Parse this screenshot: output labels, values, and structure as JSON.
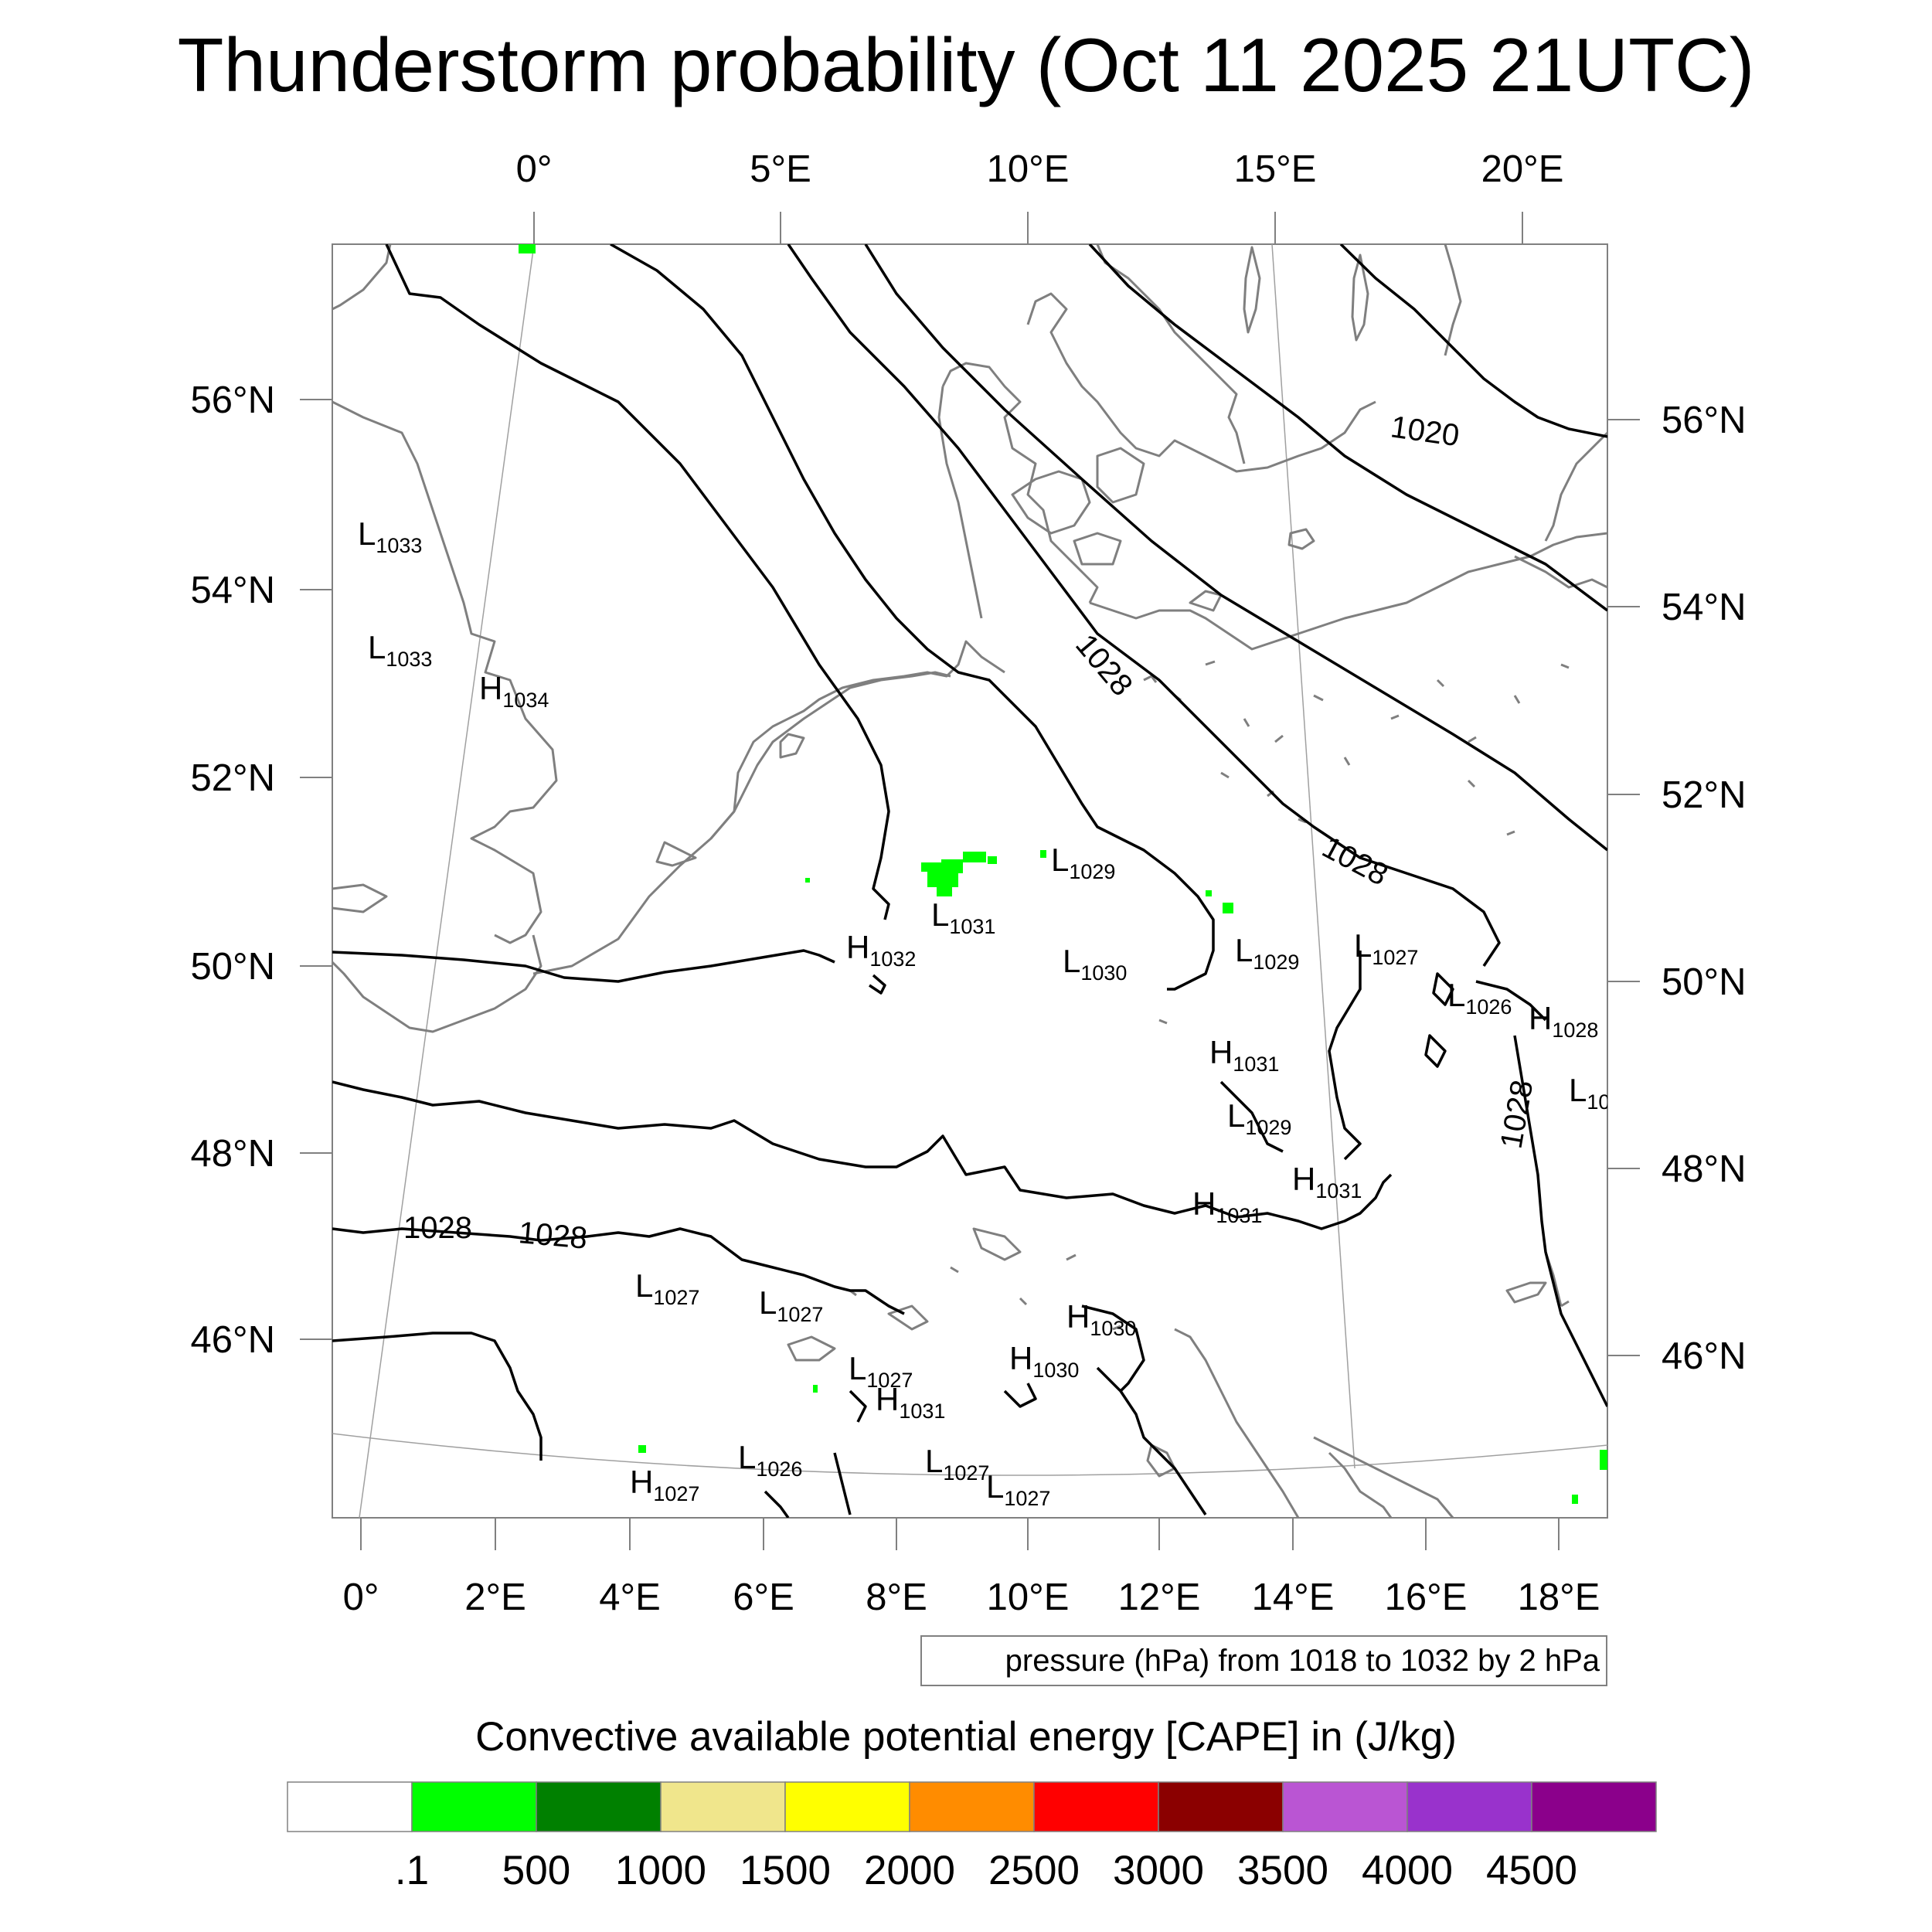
{
  "title": "Thunderstorm probability (Oct 11 2025 21UTC)",
  "top_lon_labels": [
    "0°",
    "5°E",
    "10°E",
    "15°E",
    "20°E"
  ],
  "bottom_lon_labels": [
    "0°",
    "2°E",
    "4°E",
    "6°E",
    "8°E",
    "10°E",
    "12°E",
    "14°E",
    "16°E",
    "18°E"
  ],
  "left_lat_labels": [
    "56°N",
    "54°N",
    "52°N",
    "50°N",
    "48°N",
    "46°N"
  ],
  "right_lat_labels": [
    "56°N",
    "54°N",
    "52°N",
    "50°N",
    "48°N",
    "46°N"
  ],
  "pressure_centers": [
    {
      "type": "L",
      "value": "1033"
    },
    {
      "type": "L",
      "value": "1033"
    },
    {
      "type": "H",
      "value": "1034"
    },
    {
      "type": "L",
      "value": "1029"
    },
    {
      "type": "L",
      "value": "1031"
    },
    {
      "type": "H",
      "value": "1032"
    },
    {
      "type": "L",
      "value": "1030"
    },
    {
      "type": "L",
      "value": "1029"
    },
    {
      "type": "L",
      "value": "1027"
    },
    {
      "type": "L",
      "value": "1026"
    },
    {
      "type": "H",
      "value": "1028"
    },
    {
      "type": "H",
      "value": "1031"
    },
    {
      "type": "L",
      "value": "1029"
    },
    {
      "type": "L",
      "value": "10"
    },
    {
      "type": "H",
      "value": "1031"
    },
    {
      "type": "H",
      "value": "1031"
    },
    {
      "type": "L",
      "value": "1027"
    },
    {
      "type": "L",
      "value": "1027"
    },
    {
      "type": "H",
      "value": "1030"
    },
    {
      "type": "L",
      "value": "1027"
    },
    {
      "type": "H",
      "value": "1031"
    },
    {
      "type": "H",
      "value": "1030"
    },
    {
      "type": "L",
      "value": "1026"
    },
    {
      "type": "L",
      "value": "1027"
    },
    {
      "type": "L",
      "value": "1027"
    },
    {
      "type": "H",
      "value": "1027"
    }
  ],
  "contour_labels": [
    "1020",
    "1028",
    "1028",
    "1028",
    "1028",
    "1028"
  ],
  "pressure_note": "pressure (hPa) from 1018 to 1032 by 2 hPa",
  "colorbar": {
    "title": "Convective available potential energy [CAPE] in (J/kg)",
    "colors": [
      "#ffffff",
      "#00ff00",
      "#008000",
      "#f0e68c",
      "#ffff00",
      "#ff8c00",
      "#ff0000",
      "#8b0000",
      "#ba55d3",
      "#9932cc",
      "#8b008b"
    ],
    "tick_labels": [
      ".1",
      "500",
      "1000",
      "1500",
      "2000",
      "2500",
      "3000",
      "3500",
      "4000",
      "4500"
    ]
  },
  "colors": {
    "contour": "#000000",
    "coastline": "#7f7f7f",
    "cape_low": "#00ff00",
    "graticule": "#a0a0a0"
  }
}
